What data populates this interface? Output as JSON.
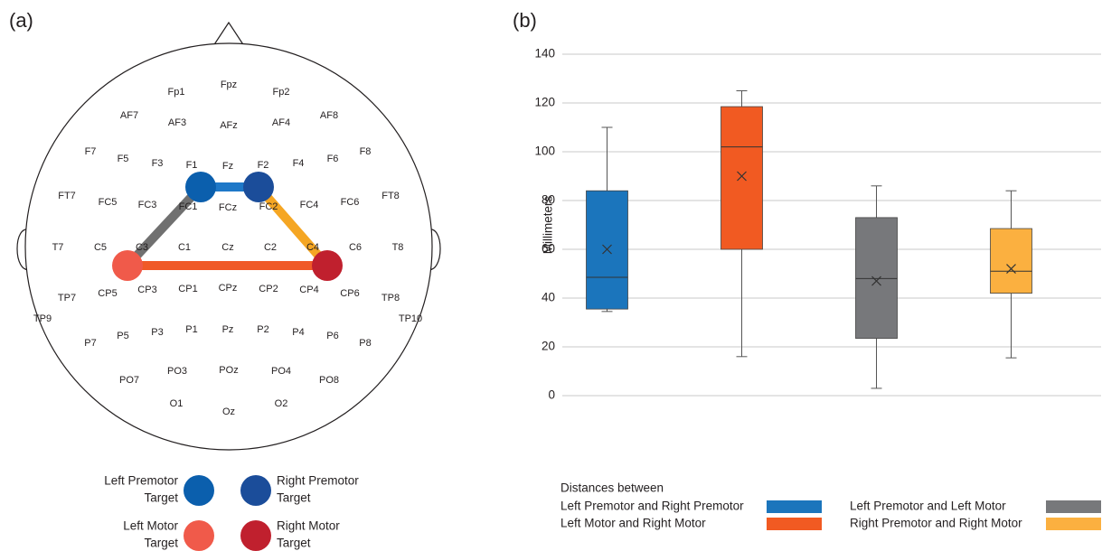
{
  "panel_a": {
    "label": "(a)",
    "electrodes": [
      "Fp1",
      "Fpz",
      "Fp2",
      "AF7",
      "AF3",
      "AFz",
      "AF4",
      "AF8",
      "F7",
      "F5",
      "F3",
      "F1",
      "Fz",
      "F2",
      "F4",
      "F6",
      "F8",
      "FT7",
      "FC5",
      "FC3",
      "FC1",
      "FCz",
      "FC2",
      "FC4",
      "FC6",
      "FT8",
      "T7",
      "C5",
      "C3",
      "C1",
      "Cz",
      "C2",
      "C4",
      "C6",
      "T8",
      "TP7",
      "CP5",
      "CP3",
      "CP1",
      "CPz",
      "CP2",
      "CP4",
      "CP6",
      "TP8",
      "TP9",
      "TP10",
      "P7",
      "P5",
      "P3",
      "P1",
      "Pz",
      "P2",
      "P4",
      "P6",
      "P8",
      "PO7",
      "PO3",
      "POz",
      "PO4",
      "PO8",
      "O1",
      "Oz",
      "O2"
    ],
    "legend": [
      {
        "lines": [
          "Left Premotor",
          "Target"
        ]
      },
      {
        "lines": [
          "Right Premotor",
          "Target"
        ]
      },
      {
        "lines": [
          "Left Motor",
          "Target"
        ]
      },
      {
        "lines": [
          "Right Motor",
          "Target"
        ]
      }
    ]
  },
  "chart_data": {
    "type": "box",
    "label": "(b)",
    "ylabel": "Millimeters",
    "ylim": [
      0,
      140
    ],
    "yticks": [
      0,
      20,
      40,
      60,
      80,
      100,
      120,
      140
    ],
    "grid": true,
    "legend_title": "Distances between",
    "series": [
      {
        "name": "Left Premotor and Right Premotor",
        "color": "#1b75bc",
        "min": 34.5,
        "q1": 35.5,
        "median": 48.5,
        "q3": 84,
        "max": 110,
        "mean": 60
      },
      {
        "name": "Left Motor and Right Motor",
        "color": "#f15a22",
        "min": 16,
        "q1": 60,
        "median": 102,
        "q3": 118.5,
        "max": 125,
        "mean": 90
      },
      {
        "name": "Left Premotor and Left Motor",
        "color": "#77787b",
        "min": 3,
        "q1": 23.5,
        "median": 48,
        "q3": 73,
        "max": 86,
        "mean": 47
      },
      {
        "name": "Right Premotor and Right Motor",
        "color": "#fbb040",
        "min": 15.5,
        "q1": 42,
        "median": 51,
        "q3": 68.5,
        "max": 84,
        "mean": 52
      }
    ]
  }
}
